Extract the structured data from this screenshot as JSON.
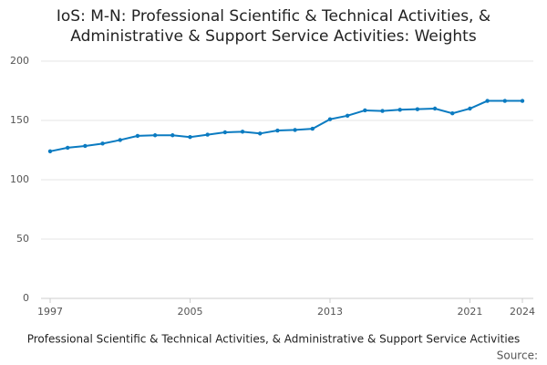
{
  "chart_data": {
    "type": "line",
    "title": [
      "IoS: M-N: Professional Scientific & Technical Activities, &",
      "Administrative & Support Service Activities: Weights"
    ],
    "x_label": "Professional Scientific & Technical Activities, & Administrative & Support Service Activities",
    "source": "Source:",
    "x": [
      1997,
      1998,
      1999,
      2000,
      2001,
      2002,
      2003,
      2004,
      2005,
      2006,
      2007,
      2008,
      2009,
      2010,
      2011,
      2012,
      2013,
      2014,
      2015,
      2016,
      2017,
      2018,
      2019,
      2020,
      2021,
      2022,
      2023,
      2024
    ],
    "series": [
      {
        "color": "#0b7bc1",
        "values": [
          124,
          127,
          128.5,
          130.5,
          133.5,
          137,
          137.5,
          137.5,
          136,
          138,
          140,
          140.5,
          139,
          141.5,
          142,
          143,
          151,
          154,
          158.5,
          158,
          159,
          159.5,
          160,
          156,
          160,
          166.5,
          166.5,
          166.5
        ]
      }
    ],
    "xlim": [
      1997,
      2024
    ],
    "xticks": [
      1997,
      2005,
      2013,
      2021,
      2024
    ],
    "ylim": [
      0,
      200
    ],
    "yticks": [
      0,
      50,
      100,
      150,
      200
    ],
    "grid": true
  }
}
